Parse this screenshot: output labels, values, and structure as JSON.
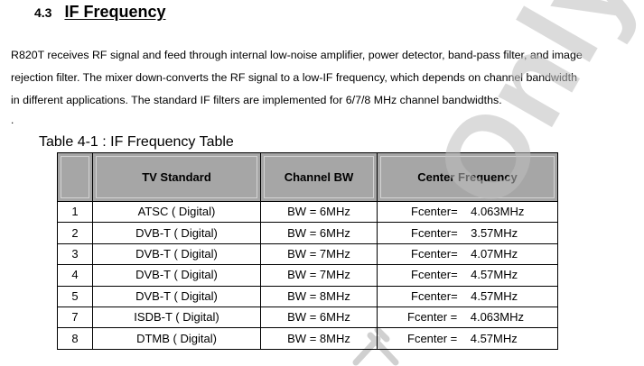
{
  "section": {
    "number": "4.3",
    "title": "IF Frequency"
  },
  "paragraph": {
    "lines": [
      "R820T receives RF signal and feed through internal low-noise amplifier, power detector, band-pass filter, and image",
      "rejection filter. The mixer down-converts the RF signal to a low-IF frequency, which depends on channel bandwidth",
      "in different applications. The standard IF filters are implemented for 6/7/8 MHz channel bandwidths."
    ]
  },
  "stray_mark": ".",
  "table": {
    "caption": "Table 4-1 : IF Frequency Table",
    "headers": [
      "",
      "TV Standard",
      "Channel BW",
      "Center Frequency"
    ],
    "rows": [
      [
        "1",
        "ATSC ( Digital)",
        "BW = 6MHz",
        "Fcenter=    4.063MHz"
      ],
      [
        "2",
        "DVB-T ( Digital)",
        "BW = 6MHz",
        "Fcenter=    3.57MHz"
      ],
      [
        "3",
        "DVB-T ( Digital)",
        "BW = 7MHz",
        "Fcenter=    4.07MHz"
      ],
      [
        "4",
        "DVB-T ( Digital)",
        "BW = 7MHz",
        "Fcenter=    4.57MHz"
      ],
      [
        "5",
        "DVB-T ( Digital)",
        "BW = 8MHz",
        "Fcenter=    4.57MHz"
      ],
      [
        "7",
        "ISDB-T ( Digital)",
        "BW = 6MHz",
        "Fcenter =    4.063MHz"
      ],
      [
        "8",
        "DTMB ( Digital)",
        "BW = 8MHz",
        "Fcenter =    4.57MHz"
      ]
    ]
  },
  "watermark": {
    "text": "Only",
    "color": "#bfbfbf"
  }
}
